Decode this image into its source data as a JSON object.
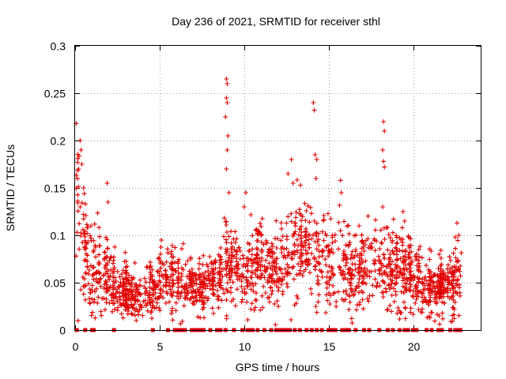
{
  "chart_data": {
    "type": "scatter",
    "title": "Day 236 of 2021, SRMTID for receiver sthl",
    "xlabel": "GPS time / hours",
    "ylabel": "SRMTID / TECUs",
    "xlim": [
      0,
      24
    ],
    "ylim": [
      0,
      0.3
    ],
    "grid": true,
    "x_ticks": [
      0,
      5,
      10,
      15,
      20
    ],
    "x_tick_labels": [
      "0",
      "5",
      "10",
      "15",
      "20"
    ],
    "y_ticks": [
      0,
      0.05,
      0.1,
      0.15,
      0.2,
      0.25,
      0.3
    ],
    "y_tick_labels": [
      "0",
      "0.05",
      "0.1",
      "0.15",
      "0.2",
      "0.25",
      "0.3"
    ],
    "marker": "plus",
    "series": [
      {
        "name": "SRMTID",
        "color": "#e00000",
        "trend_profile": [
          [
            0.0,
            0.11
          ],
          [
            0.2,
            0.14
          ],
          [
            0.5,
            0.09
          ],
          [
            1.0,
            0.065
          ],
          [
            1.5,
            0.06
          ],
          [
            2.0,
            0.05
          ],
          [
            2.5,
            0.04
          ],
          [
            3.0,
            0.035
          ],
          [
            3.5,
            0.035
          ],
          [
            4.0,
            0.035
          ],
          [
            4.5,
            0.04
          ],
          [
            5.0,
            0.045
          ],
          [
            5.5,
            0.05
          ],
          [
            6.0,
            0.05
          ],
          [
            6.5,
            0.05
          ],
          [
            7.0,
            0.045
          ],
          [
            7.5,
            0.04
          ],
          [
            8.0,
            0.045
          ],
          [
            8.5,
            0.055
          ],
          [
            9.0,
            0.07
          ],
          [
            9.5,
            0.065
          ],
          [
            10.0,
            0.055
          ],
          [
            10.5,
            0.06
          ],
          [
            11.0,
            0.07
          ],
          [
            11.5,
            0.06
          ],
          [
            12.0,
            0.06
          ],
          [
            12.5,
            0.07
          ],
          [
            13.0,
            0.09
          ],
          [
            13.5,
            0.08
          ],
          [
            14.0,
            0.085
          ],
          [
            14.5,
            0.08
          ],
          [
            15.0,
            0.075
          ],
          [
            15.5,
            0.075
          ],
          [
            16.0,
            0.07
          ],
          [
            16.5,
            0.06
          ],
          [
            17.0,
            0.06
          ],
          [
            17.5,
            0.075
          ],
          [
            18.0,
            0.07
          ],
          [
            18.5,
            0.065
          ],
          [
            19.0,
            0.06
          ],
          [
            19.5,
            0.055
          ],
          [
            20.0,
            0.05
          ],
          [
            20.5,
            0.05
          ],
          [
            21.0,
            0.04
          ],
          [
            21.5,
            0.045
          ],
          [
            22.0,
            0.045
          ],
          [
            22.5,
            0.05
          ],
          [
            22.8,
            0.06
          ]
        ],
        "spikes": [
          {
            "x": 0.3,
            "y": 0.2
          },
          {
            "x": 0.35,
            "y": 0.19
          },
          {
            "x": 0.2,
            "y": 0.17
          },
          {
            "x": 0.4,
            "y": 0.175
          },
          {
            "x": 0.3,
            "y": 0.13
          },
          {
            "x": 0.5,
            "y": 0.15
          },
          {
            "x": 1.9,
            "y": 0.155
          },
          {
            "x": 1.95,
            "y": 0.135
          },
          {
            "x": 8.95,
            "y": 0.265
          },
          {
            "x": 9.0,
            "y": 0.26
          },
          {
            "x": 8.95,
            "y": 0.245
          },
          {
            "x": 9.0,
            "y": 0.24
          },
          {
            "x": 8.9,
            "y": 0.225
          },
          {
            "x": 9.05,
            "y": 0.205
          },
          {
            "x": 9.0,
            "y": 0.19
          },
          {
            "x": 8.95,
            "y": 0.17
          },
          {
            "x": 9.1,
            "y": 0.145
          },
          {
            "x": 12.6,
            "y": 0.165
          },
          {
            "x": 12.8,
            "y": 0.18
          },
          {
            "x": 12.9,
            "y": 0.155
          },
          {
            "x": 14.1,
            "y": 0.24
          },
          {
            "x": 14.15,
            "y": 0.232
          },
          {
            "x": 14.3,
            "y": 0.18
          },
          {
            "x": 14.2,
            "y": 0.185
          },
          {
            "x": 14.25,
            "y": 0.16
          },
          {
            "x": 15.7,
            "y": 0.158
          },
          {
            "x": 15.75,
            "y": 0.145
          },
          {
            "x": 18.25,
            "y": 0.22
          },
          {
            "x": 18.3,
            "y": 0.21
          },
          {
            "x": 18.2,
            "y": 0.19
          },
          {
            "x": 18.25,
            "y": 0.178
          },
          {
            "x": 18.3,
            "y": 0.172
          },
          {
            "x": 18.2,
            "y": 0.13
          },
          {
            "x": 19.4,
            "y": 0.125
          },
          {
            "x": 19.5,
            "y": 0.115
          },
          {
            "x": 22.6,
            "y": 0.113
          },
          {
            "x": 22.7,
            "y": 0.1
          },
          {
            "x": 10.1,
            "y": 0.145
          },
          {
            "x": 10.0,
            "y": 0.13
          },
          {
            "x": 16.8,
            "y": 0.11
          },
          {
            "x": 11.0,
            "y": 0.1
          }
        ],
        "zero_values_x": [
          0.1,
          0.6,
          1.0,
          1.1,
          2.3,
          4.6,
          5.5,
          5.9,
          6.1,
          6.3,
          6.5,
          6.9,
          7.0,
          7.2,
          7.4,
          7.6,
          8.0,
          8.4,
          8.6,
          8.9,
          9.4,
          9.9,
          10.2,
          10.3,
          10.5,
          10.8,
          11.2,
          11.6,
          11.9,
          12.0,
          12.2,
          12.4,
          12.5,
          12.7,
          13.0,
          13.3,
          13.7,
          14.0,
          14.3,
          14.6,
          15.0,
          15.2,
          15.4,
          15.8,
          16.0,
          16.2,
          16.6,
          17.1,
          17.4,
          18.0,
          18.5,
          18.8,
          19.2,
          19.5,
          19.7,
          20.0,
          20.2,
          20.8,
          21.1,
          21.5,
          21.7,
          22.2,
          22.5,
          22.6,
          22.8
        ]
      }
    ]
  }
}
